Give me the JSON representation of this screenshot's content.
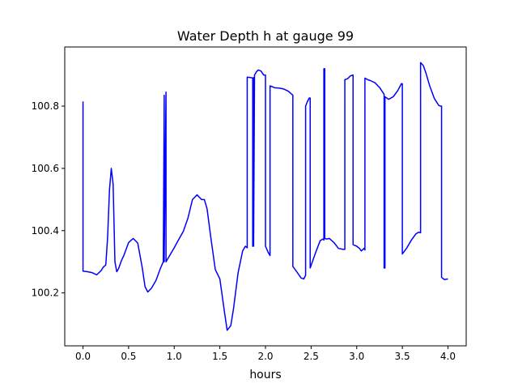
{
  "chart_data": {
    "type": "line",
    "title": "Water Depth h at gauge 99",
    "xlabel": "hours",
    "ylabel": "",
    "xlim": [
      -0.2,
      4.2
    ],
    "ylim": [
      100.03,
      100.99
    ],
    "xticks": [
      0.0,
      0.5,
      1.0,
      1.5,
      2.0,
      2.5,
      3.0,
      3.5,
      4.0
    ],
    "xtick_labels": [
      "0.0",
      "0.5",
      "1.0",
      "1.5",
      "2.0",
      "2.5",
      "3.0",
      "3.5",
      "4.0"
    ],
    "yticks": [
      100.2,
      100.4,
      100.6,
      100.8
    ],
    "ytick_labels": [
      "100.2",
      "100.4",
      "100.6",
      "100.8"
    ],
    "grid": false,
    "legend": "none",
    "series": [
      {
        "color": "#0000ff",
        "x": [
          0.0,
          0.0,
          0.05,
          0.1,
          0.15,
          0.2,
          0.22,
          0.25,
          0.27,
          0.29,
          0.31,
          0.33,
          0.35,
          0.37,
          0.39,
          0.42,
          0.45,
          0.5,
          0.55,
          0.6,
          0.65,
          0.68,
          0.71,
          0.75,
          0.8,
          0.85,
          0.88,
          0.89,
          0.89,
          0.91,
          0.91,
          0.92,
          0.95,
          1.0,
          1.05,
          1.1,
          1.15,
          1.2,
          1.25,
          1.3,
          1.33,
          1.36,
          1.4,
          1.45,
          1.5,
          1.55,
          1.58,
          1.62,
          1.65,
          1.7,
          1.75,
          1.78,
          1.8,
          1.8,
          1.85,
          1.86,
          1.86,
          1.87,
          1.87,
          1.88,
          1.88,
          1.9,
          1.92,
          1.95,
          1.98,
          2.0,
          2.0,
          2.03,
          2.05,
          2.05,
          2.07,
          2.1,
          2.15,
          2.2,
          2.25,
          2.3,
          2.3,
          2.35,
          2.39,
          2.42,
          2.44,
          2.44,
          2.46,
          2.48,
          2.49,
          2.49,
          2.55,
          2.6,
          2.63,
          2.64,
          2.64,
          2.65,
          2.65,
          2.67,
          2.7,
          2.75,
          2.8,
          2.85,
          2.87,
          2.87,
          2.9,
          2.93,
          2.96,
          2.96,
          3.0,
          3.03,
          3.05,
          3.07,
          3.08,
          3.09,
          3.09,
          3.12,
          3.15,
          3.2,
          3.25,
          3.3,
          3.3,
          3.31,
          3.31,
          3.35,
          3.4,
          3.45,
          3.49,
          3.5,
          3.5,
          3.55,
          3.6,
          3.65,
          3.68,
          3.7,
          3.7,
          3.73,
          3.76,
          3.8,
          3.85,
          3.9,
          3.92,
          3.93,
          3.93,
          3.96,
          4.0
        ],
        "y": [
          100.815,
          100.27,
          100.268,
          100.265,
          100.258,
          100.272,
          100.282,
          100.29,
          100.38,
          100.53,
          100.6,
          100.55,
          100.3,
          100.268,
          100.278,
          100.303,
          100.322,
          100.362,
          100.375,
          100.36,
          100.28,
          100.22,
          100.203,
          100.215,
          100.24,
          100.28,
          100.3,
          100.835,
          100.3,
          100.845,
          100.3,
          100.305,
          100.32,
          100.345,
          100.372,
          100.398,
          100.44,
          100.5,
          100.515,
          100.5,
          100.5,
          100.47,
          100.38,
          100.275,
          100.245,
          100.14,
          100.08,
          100.095,
          100.15,
          100.265,
          100.335,
          100.35,
          100.345,
          100.893,
          100.891,
          100.89,
          100.35,
          100.892,
          100.35,
          100.9,
          100.9,
          100.91,
          100.916,
          100.913,
          100.9,
          100.9,
          100.35,
          100.33,
          100.32,
          100.865,
          100.863,
          100.859,
          100.858,
          100.855,
          100.848,
          100.835,
          100.285,
          100.265,
          100.248,
          100.245,
          100.257,
          100.8,
          100.815,
          100.826,
          100.826,
          100.28,
          100.33,
          100.368,
          100.373,
          100.37,
          100.92,
          100.92,
          100.375,
          100.373,
          100.375,
          100.362,
          100.343,
          100.34,
          100.34,
          100.885,
          100.888,
          100.897,
          100.9,
          100.355,
          100.35,
          100.343,
          100.335,
          100.34,
          100.343,
          100.338,
          100.89,
          100.885,
          100.882,
          100.875,
          100.86,
          100.838,
          100.28,
          100.28,
          100.83,
          100.822,
          100.83,
          100.85,
          100.872,
          100.872,
          100.325,
          100.345,
          100.37,
          100.39,
          100.395,
          100.393,
          100.94,
          100.93,
          100.905,
          100.865,
          100.825,
          100.802,
          100.8,
          100.8,
          100.25,
          100.243,
          100.245
        ]
      }
    ]
  }
}
